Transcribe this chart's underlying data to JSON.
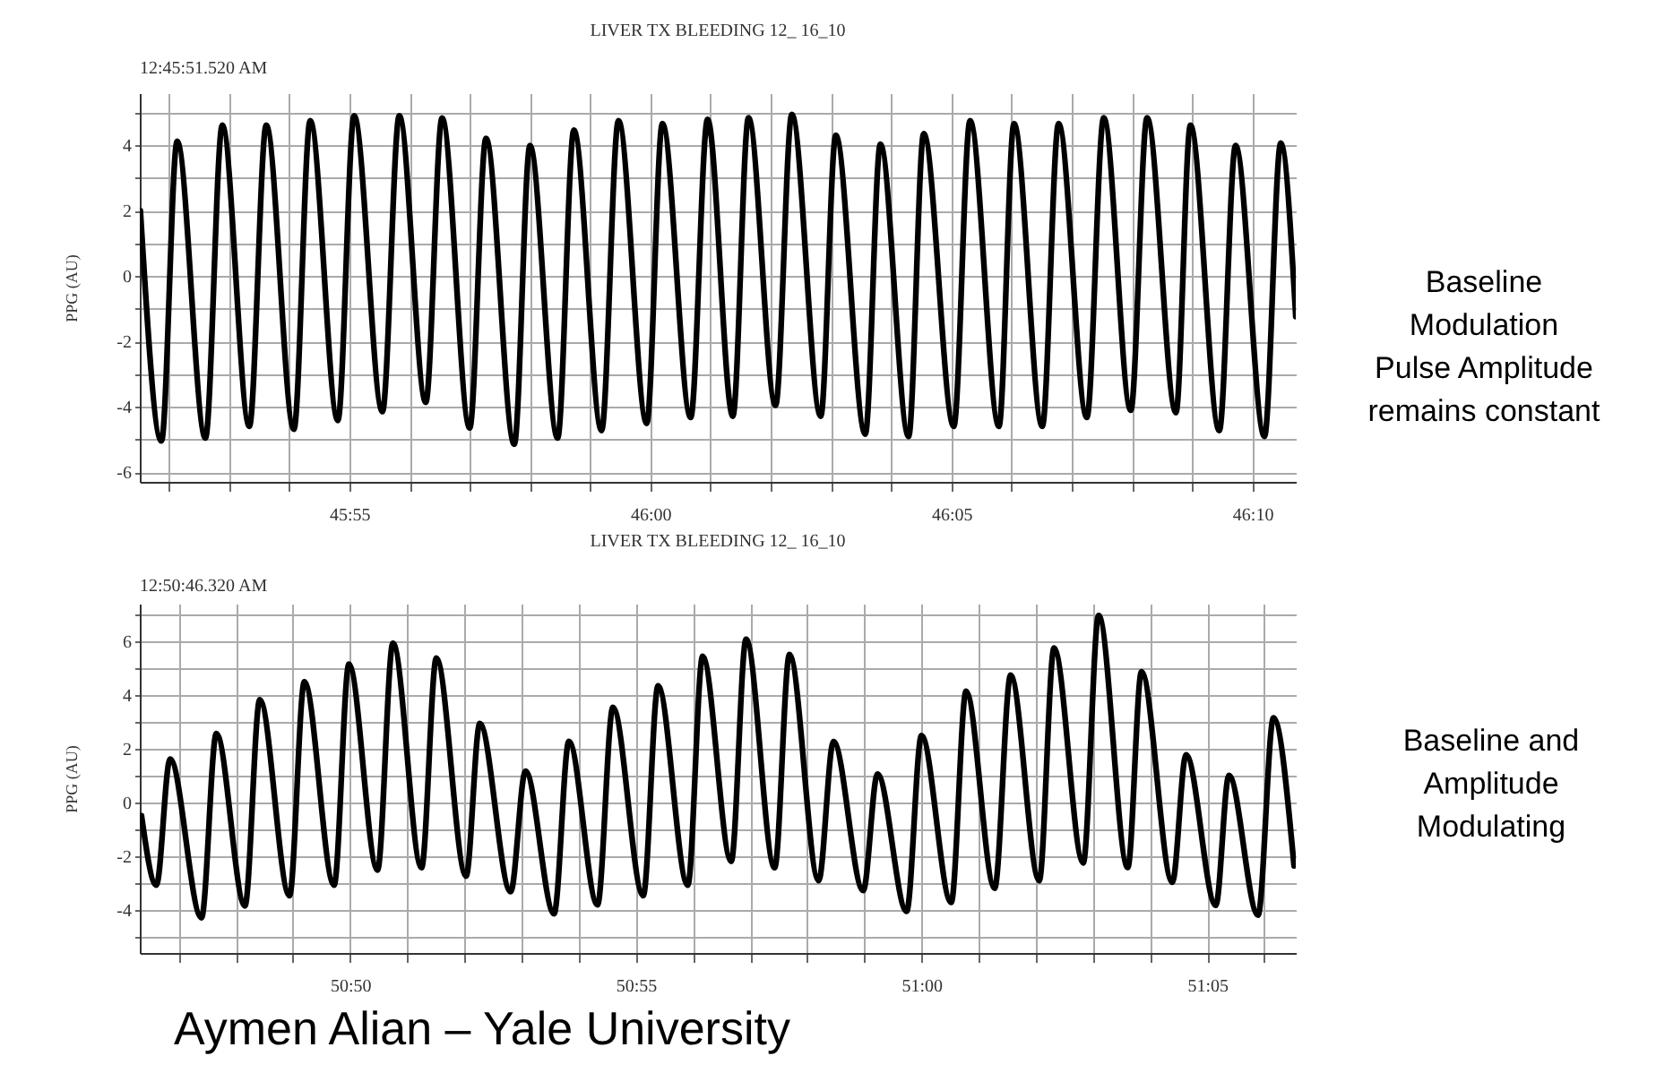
{
  "chart_data": [
    {
      "type": "line",
      "title": "LIVER TX BLEEDING 12_ 16_10",
      "ylabel": "PPG (AU)",
      "annotations": [
        "12:45:51.520 AM",
        "Baseline\nModulation\nPulse Amplitude\nremains constant"
      ],
      "x": [
        2751.53,
        2751.88,
        2752.14,
        2752.61,
        2752.89,
        2753.34,
        2753.62,
        2754.08,
        2754.35,
        2754.81,
        2755.08,
        2755.55,
        2755.83,
        2756.27,
        2756.54,
        2757.0,
        2757.27,
        2757.74,
        2758.0,
        2758.46,
        2758.73,
        2759.19,
        2759.47,
        2759.94,
        2760.2,
        2760.67,
        2760.95,
        2761.37,
        2761.63,
        2762.08,
        2762.35,
        2762.83,
        2763.08,
        2763.57,
        2763.82,
        2764.29,
        2764.54,
        2765.04,
        2765.31,
        2765.79,
        2766.04,
        2766.51,
        2766.78,
        2767.25,
        2767.53,
        2767.98,
        2768.25,
        2768.73,
        2768.97,
        2769.45,
        2769.72,
        2770.2,
        2770.47,
        2770.72
      ],
      "series": [
        {
          "color": "#000000",
          "values": [
            2.0,
            -5.05,
            4.13,
            -4.96,
            4.62,
            -4.6,
            4.62,
            -4.69,
            4.76,
            -4.42,
            4.91,
            -4.15,
            4.91,
            -3.87,
            4.84,
            -4.65,
            4.22,
            -5.15,
            4.0,
            -4.96,
            4.47,
            -4.73,
            4.76,
            -4.51,
            4.67,
            -4.33,
            4.8,
            -4.29,
            4.85,
            -3.96,
            4.95,
            -4.29,
            4.31,
            -4.84,
            4.04,
            -4.91,
            4.36,
            -4.6,
            4.76,
            -4.6,
            4.67,
            -4.6,
            4.67,
            -4.33,
            4.85,
            -4.11,
            4.85,
            -4.18,
            4.62,
            -4.73,
            4.0,
            -4.91,
            4.07,
            -1.24
          ]
        }
      ],
      "xlim": [
        2751.52,
        2770.72
      ],
      "xticks": [
        {
          "value": 2752,
          "label": null
        },
        {
          "value": 2753,
          "label": null
        },
        {
          "value": 2754,
          "label": null
        },
        {
          "value": 2755,
          "label": "45:55"
        },
        {
          "value": 2756,
          "label": null
        },
        {
          "value": 2757,
          "label": null
        },
        {
          "value": 2758,
          "label": null
        },
        {
          "value": 2759,
          "label": null
        },
        {
          "value": 2760,
          "label": "46:00"
        },
        {
          "value": 2761,
          "label": null
        },
        {
          "value": 2762,
          "label": null
        },
        {
          "value": 2763,
          "label": null
        },
        {
          "value": 2764,
          "label": null
        },
        {
          "value": 2765,
          "label": "46:05"
        },
        {
          "value": 2766,
          "label": null
        },
        {
          "value": 2767,
          "label": null
        },
        {
          "value": 2768,
          "label": null
        },
        {
          "value": 2769,
          "label": null
        },
        {
          "value": 2770,
          "label": "46:10"
        }
      ],
      "ylim": [
        -6.3,
        5.6
      ],
      "yticks": [
        -6,
        {
          "value": -5,
          "label": null
        },
        -4,
        {
          "value": -3,
          "label": null
        },
        -2,
        {
          "value": -1,
          "label": null
        },
        0,
        {
          "value": 1,
          "label": null
        },
        2,
        {
          "value": 3,
          "label": null
        },
        4,
        {
          "value": 5,
          "label": null
        }
      ],
      "grid": true
    },
    {
      "type": "line",
      "title": "LIVER TX BLEEDING 12_ 16_10",
      "ylabel": "PPG (AU)",
      "annotations": [
        "12:50:46.320 AM",
        "Baseline and\nAmplitude\nModulating",
        "Aymen Alian – Yale University"
      ],
      "x": [
        3046.35,
        3046.61,
        3046.85,
        3047.4,
        3047.66,
        3048.16,
        3048.42,
        3048.94,
        3049.2,
        3049.72,
        3049.98,
        3050.48,
        3050.75,
        3051.25,
        3051.51,
        3052.03,
        3052.27,
        3052.81,
        3053.07,
        3053.57,
        3053.83,
        3054.33,
        3054.6,
        3055.13,
        3055.39,
        3055.91,
        3056.17,
        3056.67,
        3056.93,
        3057.43,
        3057.69,
        3058.2,
        3058.46,
        3058.98,
        3059.23,
        3059.74,
        3060.0,
        3060.52,
        3060.78,
        3061.28,
        3061.56,
        3062.06,
        3062.32,
        3062.83,
        3063.1,
        3063.61,
        3063.85,
        3064.39,
        3064.63,
        3065.15,
        3065.38,
        3065.89,
        3066.16,
        3066.52
      ],
      "series": [
        {
          "color": "#000000",
          "values": [
            -0.49,
            -3.08,
            1.62,
            -4.29,
            2.57,
            -3.85,
            3.83,
            -3.47,
            4.49,
            -3.08,
            5.15,
            -2.52,
            5.93,
            -2.43,
            5.38,
            -2.74,
            2.94,
            -3.32,
            1.17,
            -4.14,
            2.28,
            -3.81,
            3.54,
            -3.47,
            4.34,
            -3.08,
            5.44,
            -2.19,
            6.08,
            -2.43,
            5.51,
            -2.91,
            2.27,
            -3.28,
            1.06,
            -4.05,
            2.49,
            -3.72,
            4.14,
            -3.19,
            4.74,
            -2.91,
            5.75,
            -2.25,
            6.96,
            -2.42,
            4.87,
            -2.97,
            1.78,
            -3.83,
            1.01,
            -4.19,
            3.15,
            -2.36
          ]
        }
      ],
      "xlim": [
        3046.32,
        3066.55
      ],
      "xticks": [
        {
          "value": 3047,
          "label": null
        },
        {
          "value": 3048,
          "label": null
        },
        {
          "value": 3049,
          "label": null
        },
        {
          "value": 3050,
          "label": "50:50"
        },
        {
          "value": 3051,
          "label": null
        },
        {
          "value": 3052,
          "label": null
        },
        {
          "value": 3053,
          "label": null
        },
        {
          "value": 3054,
          "label": null
        },
        {
          "value": 3055,
          "label": "50:55"
        },
        {
          "value": 3056,
          "label": null
        },
        {
          "value": 3057,
          "label": null
        },
        {
          "value": 3058,
          "label": null
        },
        {
          "value": 3059,
          "label": null
        },
        {
          "value": 3060,
          "label": "51:00"
        },
        {
          "value": 3061,
          "label": null
        },
        {
          "value": 3062,
          "label": null
        },
        {
          "value": 3063,
          "label": null
        },
        {
          "value": 3064,
          "label": null
        },
        {
          "value": 3065,
          "label": "51:05"
        },
        {
          "value": 3066,
          "label": null
        }
      ],
      "ylim": [
        -5.6,
        7.4
      ],
      "yticks": [
        {
          "value": -5,
          "label": null
        },
        -4,
        {
          "value": -3,
          "label": null
        },
        -2,
        {
          "value": -1,
          "label": null
        },
        0,
        {
          "value": 1,
          "label": null
        },
        2,
        {
          "value": 3,
          "label": null
        },
        4,
        {
          "value": 5,
          "label": null
        },
        6,
        {
          "value": 7,
          "label": null
        }
      ],
      "grid": true
    }
  ]
}
